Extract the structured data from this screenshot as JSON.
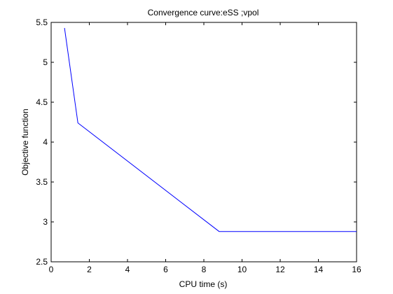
{
  "chart_data": {
    "type": "line",
    "title": "Convergence curve:eSS ;vpol",
    "xlabel": "CPU time (s)",
    "ylabel": "Objective function",
    "xlim": [
      0,
      16
    ],
    "ylim": [
      2.5,
      5.5
    ],
    "xticks": [
      0,
      2,
      4,
      6,
      8,
      10,
      12,
      14,
      16
    ],
    "yticks": [
      2.5,
      3,
      3.5,
      4,
      4.5,
      5,
      5.5
    ],
    "xtick_labels": [
      "0",
      "2",
      "4",
      "6",
      "8",
      "10",
      "12",
      "14",
      "16"
    ],
    "ytick_labels": [
      "2.5",
      "3",
      "3.5",
      "4",
      "4.5",
      "5",
      "5.5"
    ],
    "grid": false,
    "series": [
      {
        "x": [
          0.7,
          1.4,
          8.8,
          16
        ],
        "y": [
          5.43,
          4.24,
          2.88,
          2.88
        ],
        "color": "#0000ff"
      }
    ]
  }
}
